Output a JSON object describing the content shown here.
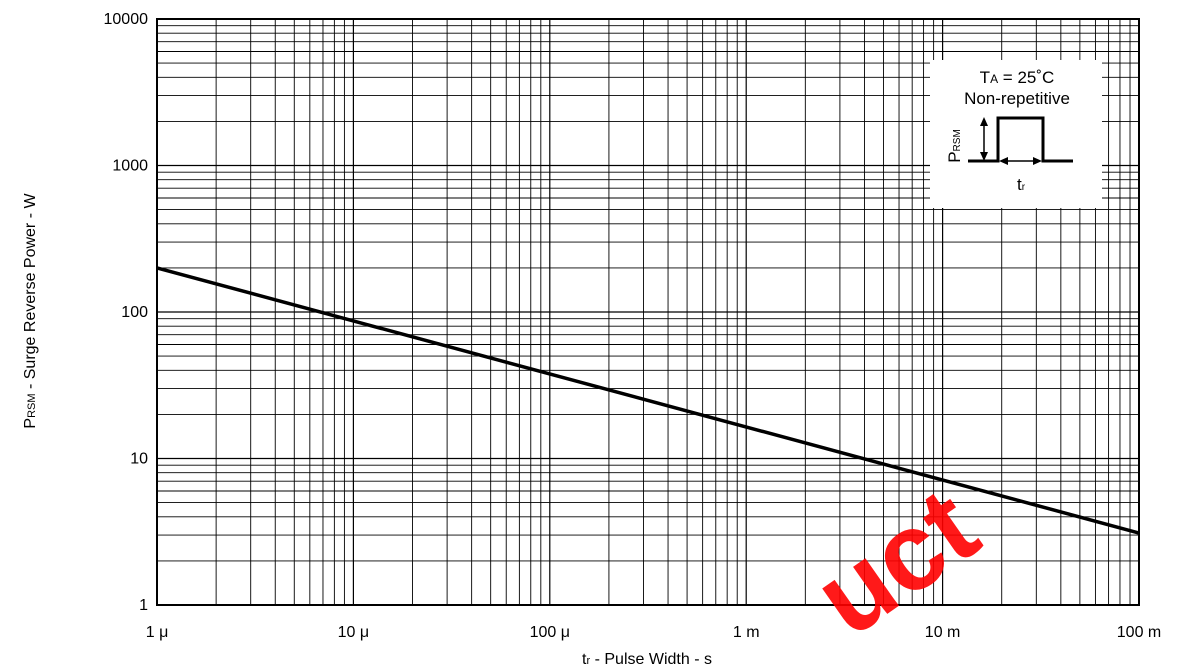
{
  "chart_data": {
    "type": "line",
    "x_scale": "log",
    "y_scale": "log",
    "xlim": [
      1e-06,
      0.1
    ],
    "ylim": [
      1,
      10000
    ],
    "grid": true,
    "x_ticks": [
      {
        "value": 1e-06,
        "label": "1 μ"
      },
      {
        "value": 1e-05,
        "label": "10 μ"
      },
      {
        "value": 0.0001,
        "label": "100 μ"
      },
      {
        "value": 0.001,
        "label": "1 m"
      },
      {
        "value": 0.01,
        "label": "10 m"
      },
      {
        "value": 0.1,
        "label": "100 m"
      }
    ],
    "y_ticks": [
      {
        "value": 1,
        "label": "1"
      },
      {
        "value": 10,
        "label": "10"
      },
      {
        "value": 100,
        "label": "100"
      },
      {
        "value": 1000,
        "label": "1000"
      },
      {
        "value": 10000,
        "label": "10000"
      }
    ],
    "xlabel": {
      "main": "t",
      "sub": "r",
      "rest": " - Pulse Width - s"
    },
    "ylabel": {
      "main": "P",
      "sub": "RSM",
      "rest": " - Surge Reverse Power - W"
    },
    "series": [
      {
        "x": [
          1e-06,
          0.1
        ],
        "y": [
          200,
          3.1
        ],
        "color": "#000000"
      }
    ],
    "legend": {
      "position": "top-right",
      "line1": {
        "main": "T",
        "sub": "A",
        "rest": " = 25˚C"
      },
      "line2": "Non-repetitive",
      "pulse_label": {
        "main": "P",
        "sub": "RSM"
      },
      "width_label": {
        "main": "t",
        "sub": "r"
      }
    },
    "watermark": "uct"
  },
  "colors": {
    "grid": "#000000",
    "line": "#000000",
    "watermark": "#ff0000"
  }
}
